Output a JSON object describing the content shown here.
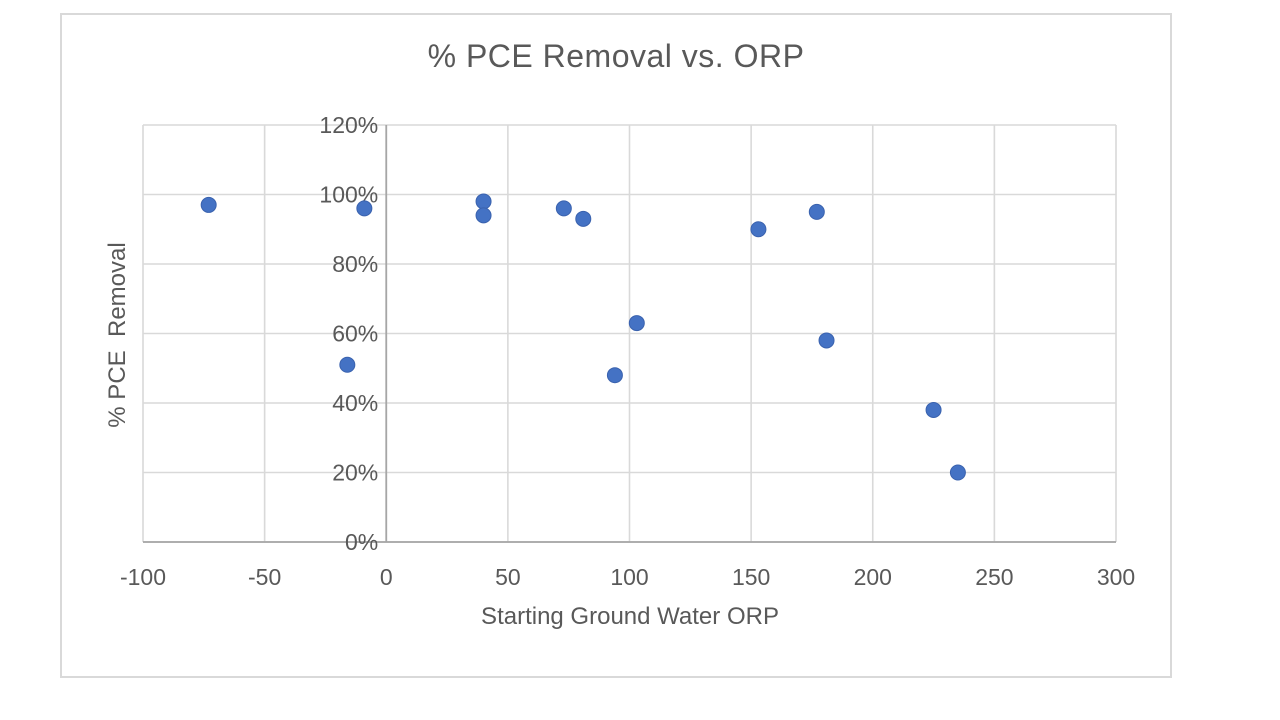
{
  "chart_data": {
    "type": "scatter",
    "title": "% PCE Removal vs. ORP",
    "xlabel": "Starting Ground Water ORP",
    "ylabel": "% PCE  Removal",
    "series_count": 1,
    "legend": "none",
    "grid": true,
    "xlim": [
      -100,
      300
    ],
    "ylim_pct": [
      0,
      120
    ],
    "x_ticks": [
      -100,
      -50,
      0,
      50,
      100,
      150,
      200,
      250,
      300
    ],
    "y_ticks": [
      {
        "label": "0%",
        "value": 0
      },
      {
        "label": "20%",
        "value": 20
      },
      {
        "label": "40%",
        "value": 40
      },
      {
        "label": "60%",
        "value": 60
      },
      {
        "label": "80%",
        "value": 80
      },
      {
        "label": "100%",
        "value": 100
      },
      {
        "label": "120%",
        "value": 120
      }
    ],
    "points": [
      {
        "x": -73,
        "y_pct": 97
      },
      {
        "x": -16,
        "y_pct": 51
      },
      {
        "x": -9,
        "y_pct": 96
      },
      {
        "x": 40,
        "y_pct": 98
      },
      {
        "x": 40,
        "y_pct": 94
      },
      {
        "x": 73,
        "y_pct": 96
      },
      {
        "x": 81,
        "y_pct": 93
      },
      {
        "x": 94,
        "y_pct": 48
      },
      {
        "x": 103,
        "y_pct": 63
      },
      {
        "x": 153,
        "y_pct": 90
      },
      {
        "x": 177,
        "y_pct": 95
      },
      {
        "x": 181,
        "y_pct": 58
      },
      {
        "x": 225,
        "y_pct": 38
      },
      {
        "x": 235,
        "y_pct": 20
      }
    ],
    "colors": {
      "marker": "#4472C4",
      "marker_edge": "#3A62AE",
      "text": "#595959",
      "gridline": "#d9d9d9",
      "axis_line": "#a6a6a6",
      "frame_border": "#d9d9d9"
    }
  }
}
